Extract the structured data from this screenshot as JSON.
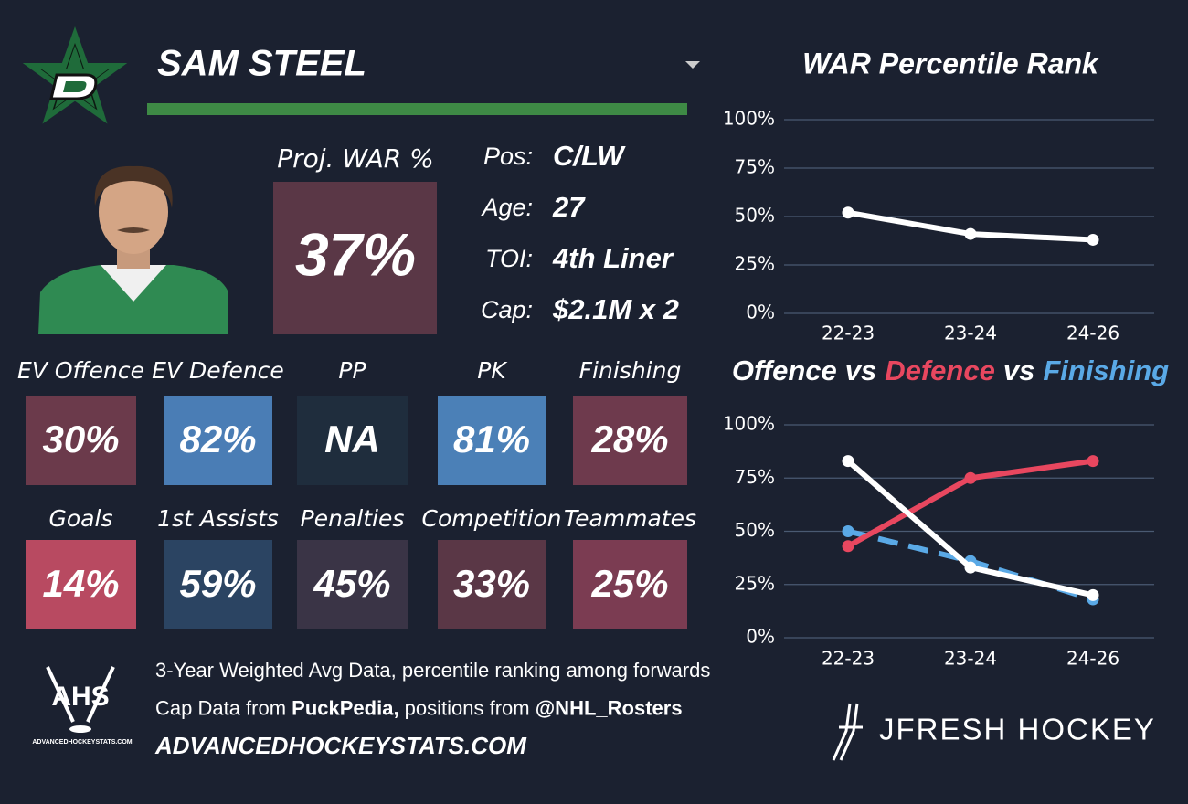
{
  "header": {
    "name": "SAM STEEL"
  },
  "profile": {
    "proj_war_label": "Proj. WAR %",
    "proj_war": "37%",
    "proj_war_color": "#5a3746",
    "fields": [
      {
        "label": "Pos:",
        "value": "C/LW"
      },
      {
        "label": "Age:",
        "value": "27"
      },
      {
        "label": "TOI:",
        "value": "4th Liner"
      },
      {
        "label": "Cap:",
        "value": "$2.1M x 2"
      }
    ]
  },
  "tiles": [
    [
      {
        "label": "EV Offence",
        "value": "30%",
        "color": "#6b3a4b"
      },
      {
        "label": "EV Defence",
        "value": "82%",
        "color": "#4a7db5"
      },
      {
        "label": "PP",
        "value": "NA",
        "color": "#1f2d3d"
      },
      {
        "label": "PK",
        "value": "81%",
        "color": "#4b80b7"
      },
      {
        "label": "Finishing",
        "value": "28%",
        "color": "#6e3a4d"
      }
    ],
    [
      {
        "label": "Goals",
        "value": "14%",
        "color": "#b84a61"
      },
      {
        "label": "1st Assists",
        "value": "59%",
        "color": "#2b4462"
      },
      {
        "label": "Penalties",
        "value": "45%",
        "color": "#3a3446"
      },
      {
        "label": "Competition",
        "value": "33%",
        "color": "#5a3746"
      },
      {
        "label": "Teammates",
        "value": "25%",
        "color": "#7b3c52"
      }
    ]
  ],
  "footer": {
    "lines": [
      [
        {
          "text": "3-Year Weighted Avg Data, percentile ranking among forwards"
        }
      ],
      [
        {
          "text": "Cap Data from "
        },
        {
          "text": "PuckPedia,",
          "bold": true
        },
        {
          "text": " positions from "
        },
        {
          "text": "@NHL_Rosters",
          "bold": true
        }
      ],
      [
        {
          "text": "ADVANCEDHOCKEYSTATS.COM",
          "bold": true,
          "italic": true
        }
      ]
    ],
    "ahs_logo": "AHS",
    "ahs_url": "ADVANCEDHOCKEYSTATS.COM",
    "brand": "JFRESH HOCKEY"
  },
  "chart_data": [
    {
      "type": "line",
      "title": "WAR Percentile Rank",
      "categories": [
        "22-23",
        "23-24",
        "24-26"
      ],
      "series": [
        {
          "color": "#ffffff",
          "values": [
            52,
            41,
            38
          ]
        }
      ],
      "ylim": [
        0,
        100
      ],
      "yticks": [
        {
          "value": 0,
          "label": "0%"
        },
        {
          "value": 25,
          "label": "25%"
        },
        {
          "value": 50,
          "label": "50%"
        },
        {
          "value": 75,
          "label": "75%"
        },
        {
          "value": 100,
          "label": "100%"
        }
      ],
      "grid": true
    },
    {
      "type": "line",
      "title_parts": [
        {
          "text": "Offence",
          "color": "#ffffff"
        },
        {
          "text": "vs",
          "color": "#ffffff"
        },
        {
          "text": "Defence",
          "color": "#e8475f"
        },
        {
          "text": "vs",
          "color": "#ffffff"
        },
        {
          "text": "Finishing",
          "color": "#5aa9e6"
        }
      ],
      "categories": [
        "22-23",
        "23-24",
        "24-26"
      ],
      "series": [
        {
          "color": "#5aa9e6",
          "dash": true,
          "values": [
            50,
            36,
            18
          ]
        },
        {
          "color": "#e8475f",
          "values": [
            43,
            75,
            83
          ]
        },
        {
          "color": "#ffffff",
          "values": [
            83,
            33,
            20
          ]
        }
      ],
      "ylim": [
        0,
        100
      ],
      "yticks": [
        {
          "value": 0,
          "label": "0%"
        },
        {
          "value": 25,
          "label": "25%"
        },
        {
          "value": 50,
          "label": "50%"
        },
        {
          "value": 75,
          "label": "75%"
        },
        {
          "value": 100,
          "label": "100%"
        }
      ],
      "grid": true
    }
  ]
}
